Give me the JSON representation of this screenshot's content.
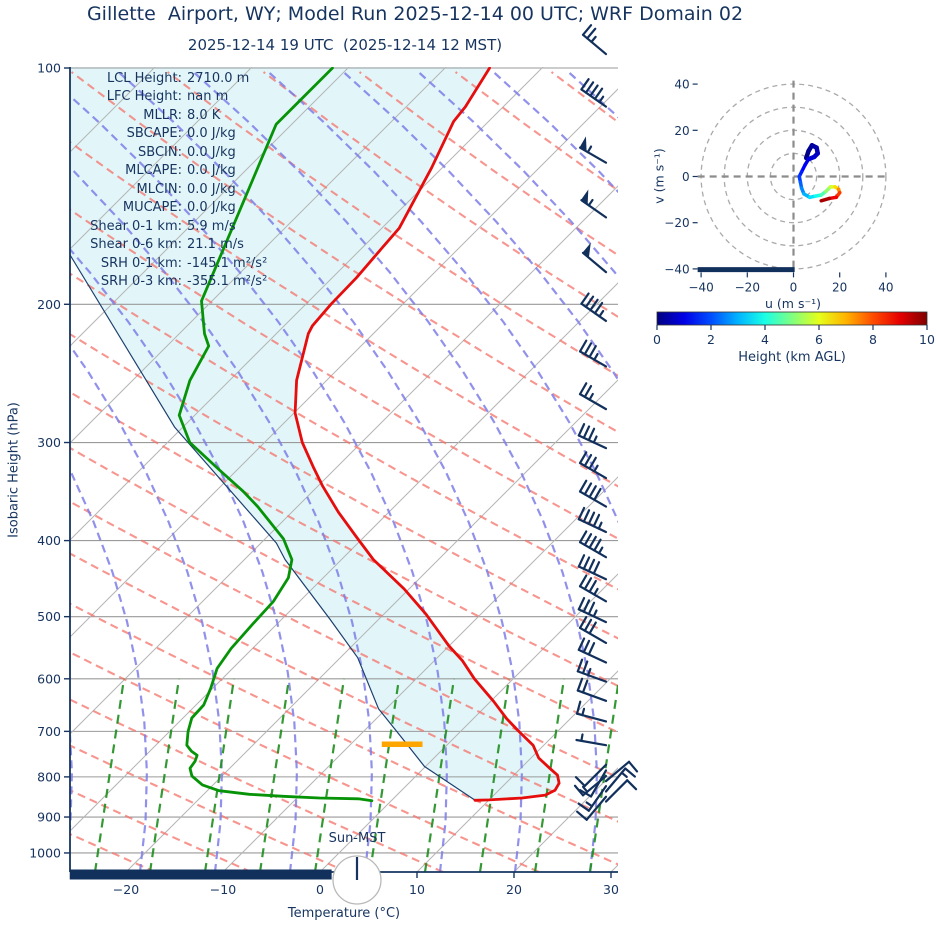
{
  "title": "Gillette  Airport, WY; Model Run 2025-12-14 00 UTC; WRF Domain 02",
  "subtitle": "2025-12-14 19 UTC  (2025-12-14 12 MST)",
  "colors": {
    "navy": "#16345f",
    "temperature_line": "#e60d0d",
    "dewpoint_line": "#079307",
    "parcel_line": "#1c3f6e",
    "shading_fill": "#e2f6f9",
    "dry_adiabat": "#f4726a",
    "moist_adiabat": "#7e7ee8",
    "mixing_ratio": "#1f8f1f",
    "isotherm": "#b5b5b5",
    "gridline": "#9a9a9a",
    "lcl_marker": "#ffa500",
    "barb": "#12305c",
    "hodo_grid": "#aaaaaa"
  },
  "skewt": {
    "xlabel": "Temperature (°C)",
    "ylabel": "Isobaric Height (hPa)",
    "x_tick_values": [
      -20,
      -10,
      0,
      10,
      20,
      30
    ],
    "x_tick_labels": [
      "−20",
      "−10",
      "0",
      "10",
      "20",
      "30"
    ],
    "y_tick_values": [
      100,
      200,
      300,
      400,
      500,
      600,
      700,
      800,
      900,
      1000
    ],
    "y_tick_labels": [
      "100",
      "200",
      "300",
      "400",
      "500",
      "600",
      "700",
      "800",
      "900",
      "1000"
    ],
    "sun_label": "Sun-MST",
    "stats": [
      {
        "label": "LCL Height:",
        "value": "2710.0 m"
      },
      {
        "label": "LFC Height:",
        "value": "nan m"
      },
      {
        "label": "MLLR:",
        "value": "8.0 K"
      },
      {
        "label": "SBCAPE:",
        "value": "0.0 J/kg"
      },
      {
        "label": "SBCIN:",
        "value": "0.0 J/kg"
      },
      {
        "label": "MLCAPE:",
        "value": "0.0 J/kg"
      },
      {
        "label": "MLCIN:",
        "value": "0.0 J/kg"
      },
      {
        "label": "MUCAPE:",
        "value": "0.0 J/kg"
      },
      {
        "label": "Shear 0-1 km:",
        "value": "5.9 m/s"
      },
      {
        "label": "Shear 0-6 km:",
        "value": "21.1 m/s"
      },
      {
        "label": "SRH 0-1 km:",
        "value": "-145.1 m²/s²"
      },
      {
        "label": "SRH 0-3 km:",
        "value": "-355.1 m²/s²"
      }
    ]
  },
  "hodograph": {
    "xlabel": "u (m s⁻¹)",
    "ylabel": "v (m s⁻¹)",
    "x_tick_values": [
      -40,
      -20,
      0,
      20,
      40
    ],
    "x_tick_labels": [
      "−40",
      "−20",
      "0",
      "20",
      "40"
    ],
    "y_tick_values": [
      40,
      20,
      0,
      -20,
      -40
    ],
    "y_tick_labels": [
      "40",
      "20",
      "0",
      "−20",
      "−40"
    ],
    "ring_radii": [
      10,
      20,
      30,
      40
    ]
  },
  "colorbar": {
    "label": "Height (km AGL)",
    "tick_values": [
      0,
      2,
      4,
      6,
      8,
      10
    ],
    "tick_labels": [
      "0",
      "2",
      "4",
      "6",
      "8",
      "10"
    ],
    "range_km": [
      0,
      10
    ]
  },
  "chart_data": {
    "type": "skewt-sounding",
    "temperature_profile": [
      {
        "p": 100,
        "t": -65.4
      },
      {
        "p": 112,
        "t": -63.9
      },
      {
        "p": 117,
        "t": -63.6
      },
      {
        "p": 134,
        "t": -61.1
      },
      {
        "p": 160,
        "t": -58.2
      },
      {
        "p": 171,
        "t": -57.9
      },
      {
        "p": 185,
        "t": -57.5
      },
      {
        "p": 200,
        "t": -57.4
      },
      {
        "p": 213,
        "t": -57.1
      },
      {
        "p": 218,
        "t": -56.7
      },
      {
        "p": 250,
        "t": -53.1
      },
      {
        "p": 275,
        "t": -49.9
      },
      {
        "p": 300,
        "t": -46.1
      },
      {
        "p": 322,
        "t": -42.5
      },
      {
        "p": 341,
        "t": -39.5
      },
      {
        "p": 368,
        "t": -35.2
      },
      {
        "p": 397,
        "t": -30.6
      },
      {
        "p": 423,
        "t": -26.7
      },
      {
        "p": 461,
        "t": -20.5
      },
      {
        "p": 496,
        "t": -15.7
      },
      {
        "p": 545,
        "t": -10.0
      },
      {
        "p": 569,
        "t": -7.1
      },
      {
        "p": 600,
        "t": -4.0
      },
      {
        "p": 641,
        "t": 0.3
      },
      {
        "p": 674,
        "t": 3.4
      },
      {
        "p": 700,
        "t": 6.0
      },
      {
        "p": 729,
        "t": 8.9
      },
      {
        "p": 757,
        "t": 10.8
      },
      {
        "p": 780,
        "t": 13.0
      },
      {
        "p": 796,
        "t": 14.5
      },
      {
        "p": 815,
        "t": 15.5
      },
      {
        "p": 832,
        "t": 15.8
      },
      {
        "p": 844,
        "t": 15.3
      },
      {
        "p": 851,
        "t": 13.2
      },
      {
        "p": 856,
        "t": 10.0
      },
      {
        "p": 857,
        "t": 8.6
      }
    ],
    "dewpoint_profile": [
      {
        "p": 100,
        "t": -81.6
      },
      {
        "p": 118,
        "t": -81.6
      },
      {
        "p": 198,
        "t": -71.1
      },
      {
        "p": 218,
        "t": -67.4
      },
      {
        "p": 226,
        "t": -65.7
      },
      {
        "p": 250,
        "t": -64.1
      },
      {
        "p": 277,
        "t": -61.6
      },
      {
        "p": 300,
        "t": -57.7
      },
      {
        "p": 327,
        "t": -51.4
      },
      {
        "p": 346,
        "t": -47.2
      },
      {
        "p": 362,
        "t": -44.1
      },
      {
        "p": 398,
        "t": -38.1
      },
      {
        "p": 423,
        "t": -35.1
      },
      {
        "p": 446,
        "t": -33.6
      },
      {
        "p": 478,
        "t": -32.7
      },
      {
        "p": 511,
        "t": -32.5
      },
      {
        "p": 549,
        "t": -32.2
      },
      {
        "p": 582,
        "t": -31.6
      },
      {
        "p": 617,
        "t": -30.2
      },
      {
        "p": 648,
        "t": -29.2
      },
      {
        "p": 673,
        "t": -29.1
      },
      {
        "p": 700,
        "t": -28.1
      },
      {
        "p": 729,
        "t": -26.8
      },
      {
        "p": 742,
        "t": -25.7
      },
      {
        "p": 751,
        "t": -24.7
      },
      {
        "p": 764,
        "t": -24.3
      },
      {
        "p": 780,
        "t": -24.1
      },
      {
        "p": 798,
        "t": -23.1
      },
      {
        "p": 819,
        "t": -21.1
      },
      {
        "p": 833,
        "t": -18.8
      },
      {
        "p": 842,
        "t": -15.3
      },
      {
        "p": 847,
        "t": -11.6
      },
      {
        "p": 851,
        "t": -7.7
      },
      {
        "p": 853,
        "t": -3.6
      },
      {
        "p": 858,
        "t": -2.0
      }
    ],
    "parcel_profile": [
      {
        "p": 857,
        "t": 8.6
      },
      {
        "p": 776,
        "t": -0.1
      },
      {
        "p": 719,
        "t": -4.9
      },
      {
        "p": 655,
        "t": -10.8
      },
      {
        "p": 564,
        "t": -18.2
      },
      {
        "p": 504,
        "t": -25.0
      },
      {
        "p": 423,
        "t": -35.8
      },
      {
        "p": 403,
        "t": -38.4
      },
      {
        "p": 287,
        "t": -60.8
      },
      {
        "p": 173,
        "t": -89.4
      }
    ],
    "lcl_marker": {
      "pressure_hPa": 727,
      "t_from": -6.8,
      "t_to": -2.6
    },
    "surface_bar": {
      "t_from": -25.8,
      "t_to": 1.2
    },
    "wind_barbs": [
      {
        "p": 96,
        "kt": 25,
        "from_deg": 310
      },
      {
        "p": 112,
        "kt": 45,
        "from_deg": 305
      },
      {
        "p": 132,
        "kt": 55,
        "from_deg": 300
      },
      {
        "p": 155,
        "kt": 55,
        "from_deg": 305
      },
      {
        "p": 182,
        "kt": 50,
        "from_deg": 310
      },
      {
        "p": 210,
        "kt": 45,
        "from_deg": 305
      },
      {
        "p": 240,
        "kt": 35,
        "from_deg": 300
      },
      {
        "p": 272,
        "kt": 25,
        "from_deg": 300
      },
      {
        "p": 305,
        "kt": 35,
        "from_deg": 295
      },
      {
        "p": 333,
        "kt": 35,
        "from_deg": 300
      },
      {
        "p": 362,
        "kt": 40,
        "from_deg": 300
      },
      {
        "p": 390,
        "kt": 45,
        "from_deg": 295
      },
      {
        "p": 420,
        "kt": 45,
        "from_deg": 300
      },
      {
        "p": 448,
        "kt": 40,
        "from_deg": 295
      },
      {
        "p": 478,
        "kt": 35,
        "from_deg": 300
      },
      {
        "p": 508,
        "kt": 35,
        "from_deg": 295
      },
      {
        "p": 540,
        "kt": 30,
        "from_deg": 300
      },
      {
        "p": 572,
        "kt": 30,
        "from_deg": 295
      },
      {
        "p": 605,
        "kt": 25,
        "from_deg": 290
      },
      {
        "p": 640,
        "kt": 20,
        "from_deg": 290
      },
      {
        "p": 680,
        "kt": 15,
        "from_deg": 285
      },
      {
        "p": 729,
        "kt": 5,
        "from_deg": 280
      },
      {
        "p": 772,
        "kt": 10,
        "from_deg": 225
      },
      {
        "p": 785,
        "kt": 10,
        "from_deg": 210
      },
      {
        "p": 798,
        "kt": 15,
        "from_deg": 230
      },
      {
        "p": 810,
        "kt": 10,
        "from_deg": 50
      },
      {
        "p": 822,
        "kt": 15,
        "from_deg": 215
      },
      {
        "p": 835,
        "kt": 15,
        "from_deg": 40
      },
      {
        "p": 848,
        "kt": 10,
        "from_deg": 220
      },
      {
        "p": 860,
        "kt": 10,
        "from_deg": 45
      }
    ],
    "hodograph_trace": [
      {
        "u": 5.5,
        "v": 8,
        "km": 0
      },
      {
        "u": 6.5,
        "v": 11,
        "km": 0.1
      },
      {
        "u": 8,
        "v": 13.5,
        "km": 0.25
      },
      {
        "u": 10,
        "v": 12.5,
        "km": 0.4
      },
      {
        "u": 10.5,
        "v": 10,
        "km": 0.55
      },
      {
        "u": 9,
        "v": 8.5,
        "km": 0.7
      },
      {
        "u": 6.5,
        "v": 7.5,
        "km": 0.9
      },
      {
        "u": 5,
        "v": 5,
        "km": 1.1
      },
      {
        "u": 3.5,
        "v": 2,
        "km": 1.4
      },
      {
        "u": 2.5,
        "v": 0,
        "km": 1.7
      },
      {
        "u": 3,
        "v": -2.5,
        "km": 2.0
      },
      {
        "u": 3.5,
        "v": -5,
        "km": 2.4
      },
      {
        "u": 4.5,
        "v": -7.5,
        "km": 2.8
      },
      {
        "u": 7,
        "v": -9,
        "km": 3.2
      },
      {
        "u": 9.5,
        "v": -8.5,
        "km": 3.7
      },
      {
        "u": 12,
        "v": -8,
        "km": 4.2
      },
      {
        "u": 14,
        "v": -6.5,
        "km": 4.8
      },
      {
        "u": 16,
        "v": -4.5,
        "km": 5.5
      },
      {
        "u": 18,
        "v": -4.5,
        "km": 6.2
      },
      {
        "u": 19.5,
        "v": -5.5,
        "km": 7.0
      },
      {
        "u": 20,
        "v": -7,
        "km": 7.8
      },
      {
        "u": 18.5,
        "v": -9,
        "km": 8.6
      },
      {
        "u": 15.5,
        "v": -9.5,
        "km": 9.2
      },
      {
        "u": 12,
        "v": -10.5,
        "km": 10
      }
    ],
    "hodograph_ground_bar": {
      "u_from": -41.5,
      "u_to": 0.5,
      "v": -40.3
    }
  }
}
